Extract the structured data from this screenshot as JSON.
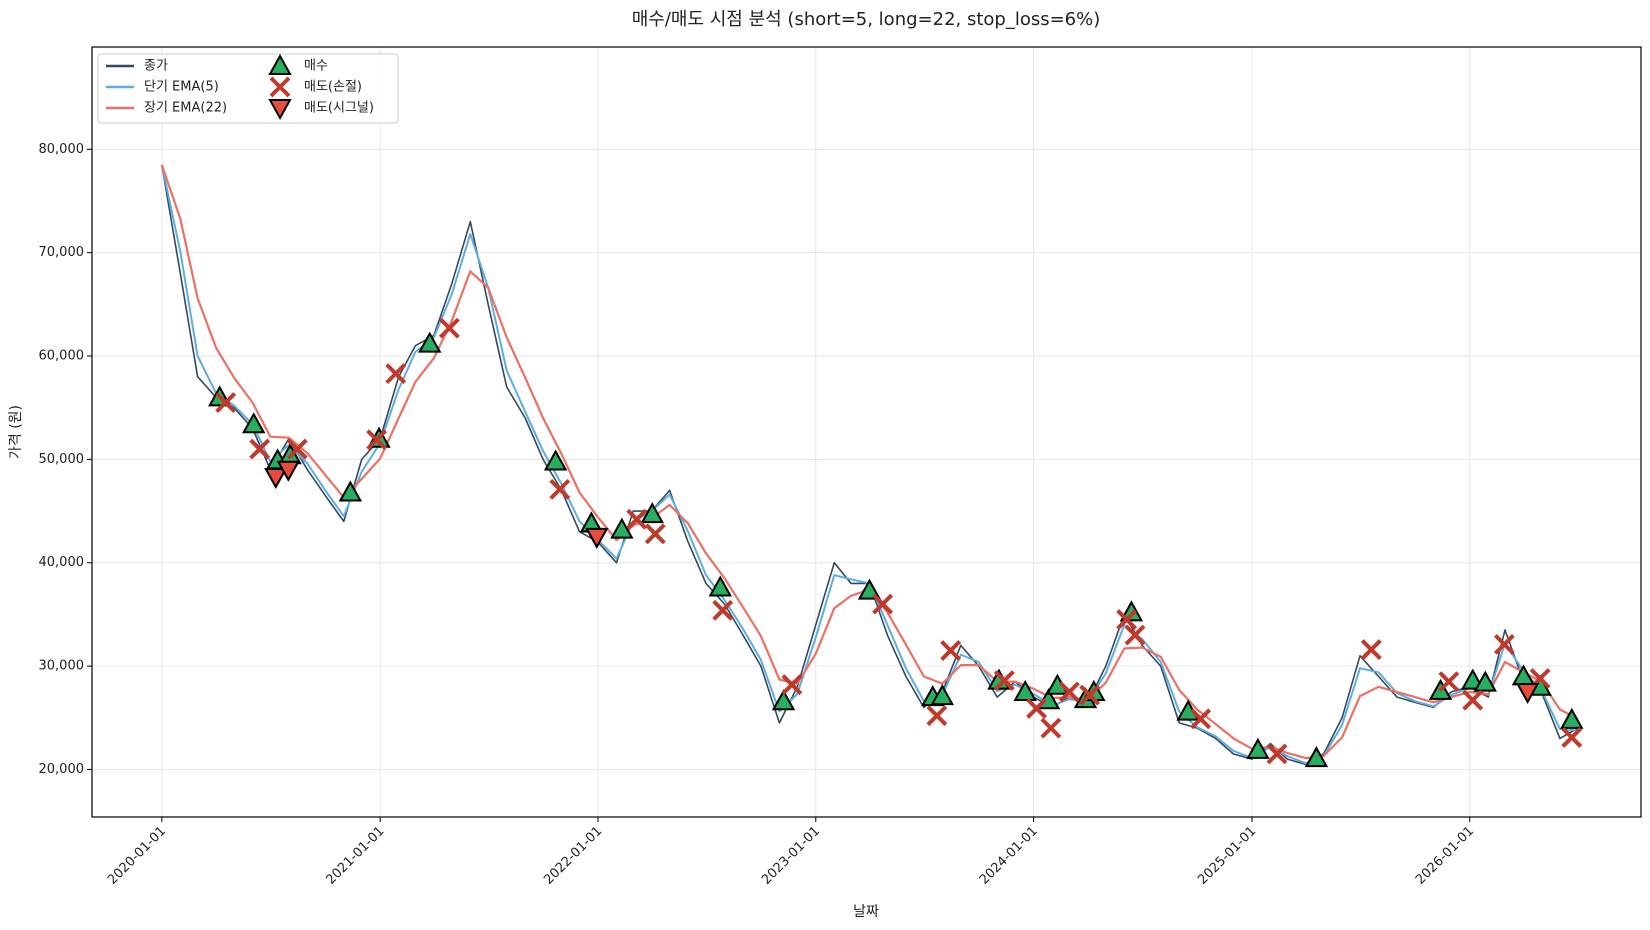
{
  "chart_data": {
    "type": "line",
    "title": "매수/매도 시점 분석 (short=5, long=22, stop_loss=6%)",
    "x_label": "날짜",
    "y_label": "가격 (원)",
    "x": [
      "2020-01-01",
      "2020-02-01",
      "2020-03-01",
      "2020-04-01",
      "2020-05-01",
      "2020-06-01",
      "2020-07-01",
      "2020-08-01",
      "2020-09-01",
      "2020-10-01",
      "2020-11-01",
      "2020-12-01",
      "2021-01-01",
      "2021-02-01",
      "2021-03-01",
      "2021-04-01",
      "2021-05-01",
      "2021-06-01",
      "2021-07-01",
      "2021-08-01",
      "2021-09-01",
      "2021-10-01",
      "2021-11-01",
      "2021-12-01",
      "2022-01-01",
      "2022-02-01",
      "2022-03-01",
      "2022-04-01",
      "2022-05-01",
      "2022-06-01",
      "2022-07-01",
      "2022-08-01",
      "2022-09-01",
      "2022-10-01",
      "2022-11-01",
      "2022-12-01",
      "2023-01-01",
      "2023-02-01",
      "2023-03-01",
      "2023-04-01",
      "2023-05-01",
      "2023-06-01",
      "2023-07-01",
      "2023-08-01",
      "2023-09-01",
      "2023-10-01",
      "2023-11-01",
      "2023-12-01",
      "2024-01-01",
      "2024-02-01",
      "2024-03-01",
      "2024-04-01",
      "2024-05-01",
      "2024-06-01",
      "2024-07-01",
      "2024-08-01",
      "2024-09-01",
      "2024-10-01",
      "2024-11-01",
      "2024-12-01",
      "2025-01-01",
      "2025-02-01",
      "2025-03-01",
      "2025-04-01",
      "2025-05-01",
      "2025-06-01",
      "2025-07-01",
      "2025-08-01",
      "2025-09-01",
      "2025-10-01",
      "2025-11-01",
      "2025-12-01",
      "2026-01-01",
      "2026-02-01",
      "2026-03-01",
      "2026-04-01",
      "2026-05-01",
      "2026-06-01",
      "2026-07-01"
    ],
    "series": [
      {
        "name": "종가",
        "color": "#34495e",
        "marker": "line",
        "width": 1.6,
        "values": [
          78500,
          68000,
          58000,
          56000,
          55000,
          53000,
          49000,
          52000,
          49000,
          46500,
          44000,
          50000,
          52000,
          58000,
          61000,
          62000,
          67000,
          73000,
          65000,
          57000,
          54000,
          50000,
          47000,
          43000,
          42000,
          40000,
          45000,
          45000,
          47000,
          42000,
          38000,
          36000,
          33000,
          30000,
          24500,
          28000,
          34000,
          40000,
          38000,
          38000,
          33000,
          29000,
          26000,
          27500,
          32000,
          30000,
          27000,
          28500,
          27000,
          26000,
          27000,
          26500,
          30000,
          35000,
          32000,
          30000,
          24500,
          24000,
          23000,
          21500,
          21000,
          22500,
          21000,
          20500,
          21500,
          25000,
          31000,
          29000,
          27000,
          26500,
          26000,
          27500,
          28000,
          27000,
          33500,
          28500,
          27500,
          23000,
          24000
        ]
      },
      {
        "name": "단기 EMA(5)",
        "color": "#5dade2",
        "marker": "line",
        "width": 2,
        "values": [
          78500,
          70100,
          60000,
          56400,
          55200,
          53400,
          49800,
          51400,
          49600,
          47000,
          44500,
          48800,
          51600,
          56800,
          60400,
          61800,
          66000,
          71800,
          66600,
          58600,
          54600,
          50800,
          47600,
          44000,
          42200,
          40400,
          44000,
          45000,
          46600,
          43000,
          38800,
          36400,
          33600,
          30600,
          25600,
          27300,
          32800,
          38800,
          38400,
          38000,
          34000,
          29800,
          26600,
          27200,
          31100,
          30400,
          27600,
          28200,
          27300,
          26200,
          26800,
          26600,
          29300,
          34000,
          32600,
          30400,
          25600,
          24100,
          23200,
          21800,
          21100,
          22200,
          21300,
          20600,
          21300,
          24300,
          29800,
          29400,
          27400,
          26600,
          26100,
          27200,
          27900,
          27200,
          32200,
          29500,
          27700,
          23900,
          23800
        ]
      },
      {
        "name": "장기 EMA(22)",
        "color": "#ec7063",
        "marker": "line",
        "width": 2.2,
        "values": [
          78500,
          73300,
          65600,
          60800,
          57900,
          55500,
          52200,
          52100,
          50600,
          48500,
          46300,
          48100,
          50100,
          54000,
          57500,
          59800,
          63400,
          68200,
          66600,
          61800,
          57900,
          54000,
          50500,
          46800,
          44400,
          42200,
          43600,
          44300,
          45600,
          43800,
          40900,
          38500,
          35700,
          32900,
          28700,
          28300,
          31200,
          35600,
          36800,
          37400,
          35200,
          32100,
          29000,
          28300,
          30100,
          30100,
          28500,
          28500,
          27800,
          26900,
          27000,
          26700,
          28400,
          31700,
          31800,
          30900,
          27700,
          25800,
          24400,
          23000,
          22000,
          22200,
          21600,
          21100,
          21300,
          23100,
          27100,
          28000,
          27500,
          27000,
          26500,
          27000,
          27500,
          27300,
          30400,
          29400,
          28500,
          25800,
          24900
        ]
      },
      {
        "name": "매수",
        "color": "#27ae60",
        "marker": "triangle-up",
        "x": [
          "2020-04-07",
          "2020-06-03",
          "2020-07-13",
          "2020-08-03",
          "2020-11-12",
          "2020-12-30",
          "2021-03-25",
          "2021-10-22",
          "2021-12-21",
          "2022-02-10",
          "2022-04-02",
          "2022-07-25",
          "2022-11-08",
          "2023-04-01",
          "2023-07-16",
          "2023-08-01",
          "2023-11-04",
          "2023-12-18",
          "2024-01-26",
          "2024-02-10",
          "2024-03-28",
          "2024-04-11",
          "2024-06-13",
          "2024-09-16",
          "2025-01-11",
          "2025-04-19",
          "2025-11-13",
          "2026-01-06",
          "2026-01-27",
          "2026-04-01",
          "2026-04-29",
          "2026-06-21"
        ],
        "values": [
          56000,
          53400,
          49900,
          50400,
          46800,
          52000,
          61200,
          49800,
          43800,
          43200,
          44700,
          37600,
          26600,
          37300,
          27000,
          27100,
          28600,
          27500,
          26700,
          28100,
          26800,
          27500,
          35200,
          25600,
          21900,
          21100,
          27600,
          28600,
          28400,
          29000,
          28000,
          24800
        ]
      },
      {
        "name": "매도(손절)",
        "color": "#c0392b",
        "marker": "x",
        "x": [
          "2020-04-17",
          "2020-06-13",
          "2020-08-15",
          "2020-12-26",
          "2021-01-27",
          "2021-04-27",
          "2021-10-29",
          "2022-03-07",
          "2022-04-07",
          "2022-07-29",
          "2022-11-22",
          "2023-04-23",
          "2023-07-23",
          "2023-08-15",
          "2023-11-13",
          "2024-01-06",
          "2024-01-30",
          "2024-03-01",
          "2024-04-04",
          "2024-06-05",
          "2024-06-19",
          "2024-10-07",
          "2025-02-12",
          "2025-07-20",
          "2025-11-27",
          "2026-01-06",
          "2026-02-28",
          "2026-04-29",
          "2026-06-21"
        ],
        "values": [
          55500,
          51000,
          51000,
          51900,
          58300,
          62700,
          47100,
          44200,
          42800,
          35400,
          28200,
          36000,
          25200,
          31500,
          28600,
          25900,
          24000,
          27500,
          27200,
          34500,
          33000,
          24900,
          21500,
          31600,
          28500,
          26700,
          32100,
          28800,
          23100
        ]
      },
      {
        "name": "매도(시그널)",
        "color": "#e74c3c",
        "marker": "triangle-down",
        "x": [
          "2020-07-10",
          "2020-07-31",
          "2021-12-30",
          "2026-04-08"
        ],
        "values": [
          48300,
          49000,
          42500,
          27500
        ]
      }
    ],
    "xlim": [
      "2019-09-06",
      "2026-10-15"
    ],
    "xticks": [
      "2020-01-01",
      "2021-01-01",
      "2022-01-01",
      "2023-01-01",
      "2024-01-01",
      "2025-01-01",
      "2026-01-01"
    ],
    "ylim": [
      15400,
      89900
    ],
    "yticks": [
      {
        "value": 20000,
        "label": "20,000"
      },
      {
        "value": 30000,
        "label": "30,000"
      },
      {
        "value": 40000,
        "label": "40,000"
      },
      {
        "value": 50000,
        "label": "50,000"
      },
      {
        "value": 60000,
        "label": "60,000"
      },
      {
        "value": 70000,
        "label": "70,000"
      },
      {
        "value": 80000,
        "label": "80,000"
      }
    ],
    "grid": true,
    "legend": "upper left"
  }
}
